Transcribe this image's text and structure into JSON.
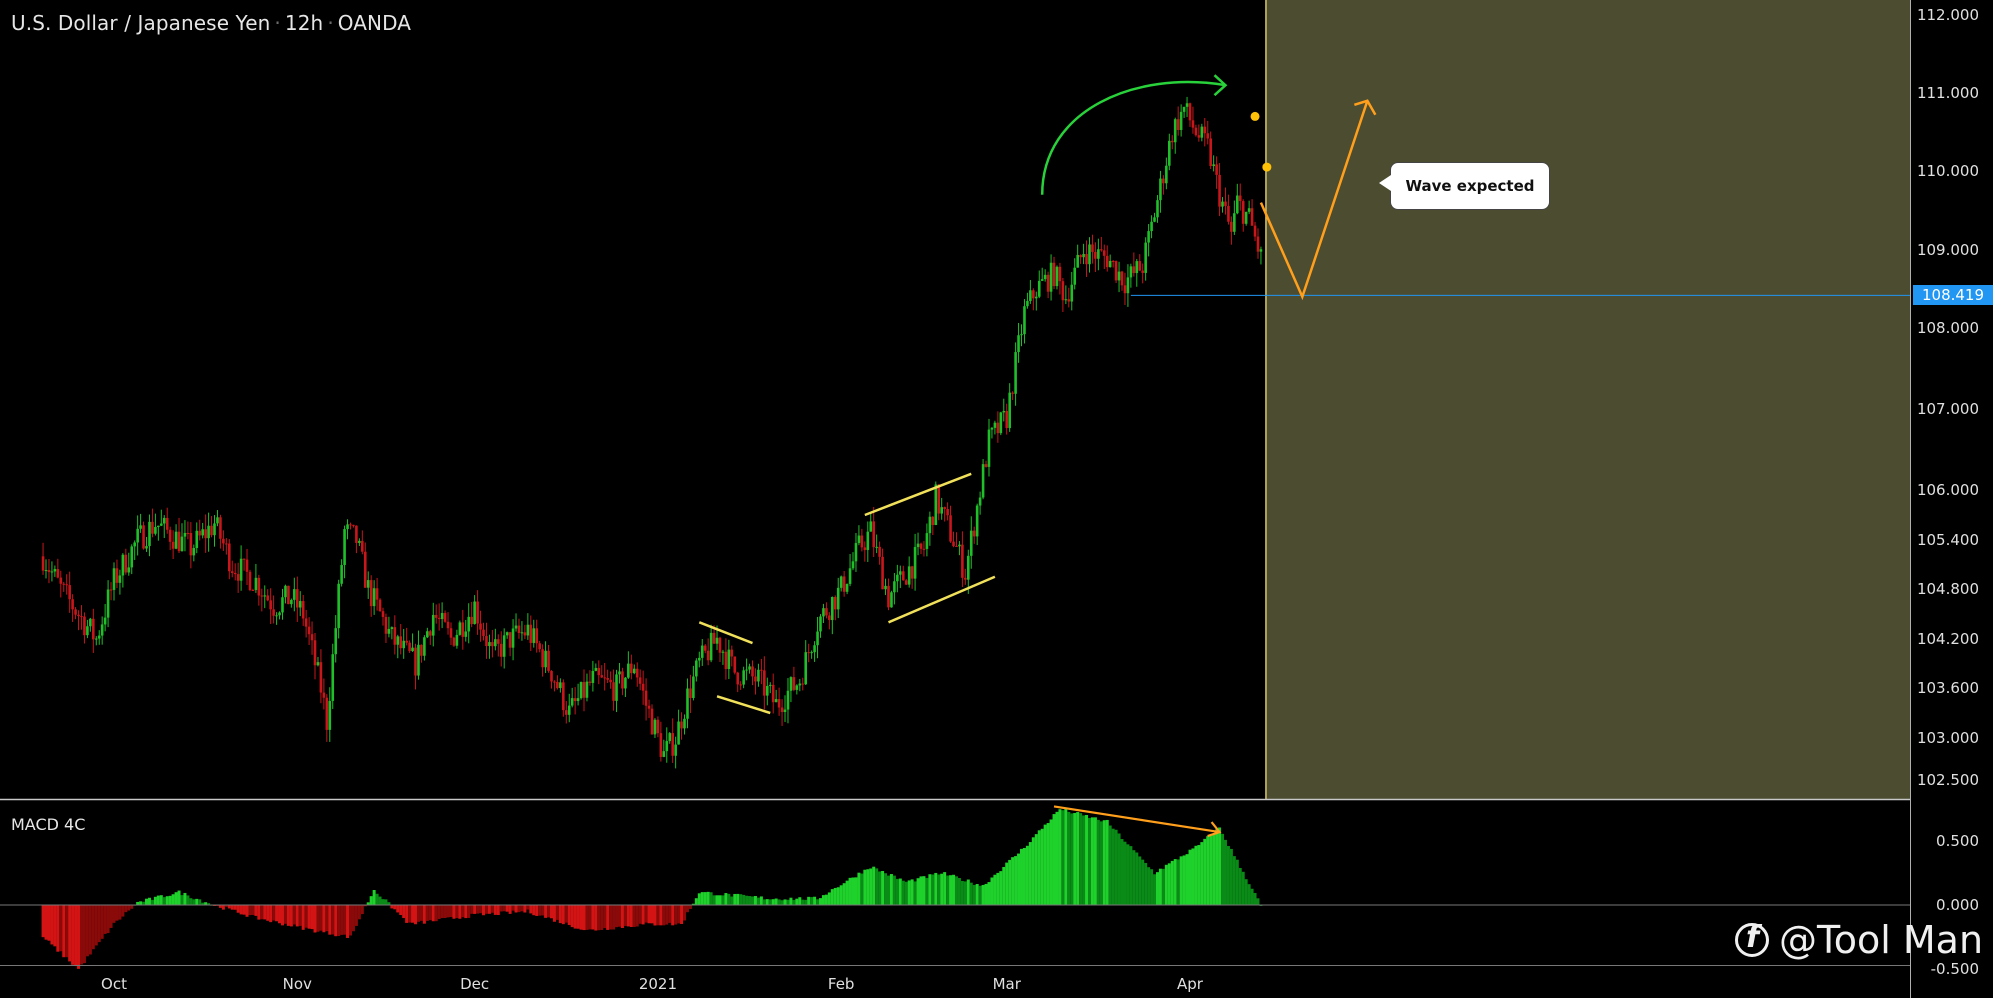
{
  "header": {
    "symbol": "U.S. Dollar / Japanese Yen",
    "interval": "12h",
    "exchange": "OANDA",
    "separator": "·"
  },
  "price_panel": {
    "current_price_label": "108.419",
    "annotation": "Wave expected",
    "colors": {
      "up": "#1fbf2a",
      "down": "#c8161b",
      "forecast_zone": "#4b4c30",
      "forecast_border": "#d8c76a",
      "price_line": "#2196f3",
      "projection": "#ff9f1c",
      "pattern": "#f0e05a",
      "arrow": "#29d13a"
    }
  },
  "indicator_panel": {
    "label": "MACD 4C"
  },
  "watermark": "@Tool Man",
  "chart_data": [
    {
      "type": "candlestick",
      "title": "U.S. Dollar / Japanese Yen · 12h · OANDA",
      "x_ticks": [
        "Oct",
        "Nov",
        "Dec",
        "2021",
        "Feb",
        "Mar",
        "Apr"
      ],
      "y_ticks": [
        "112.000",
        "111.000",
        "110.000",
        "109.000",
        "108.000",
        "107.000",
        "106.000",
        "105.400",
        "104.800",
        "104.200",
        "103.600",
        "103.000",
        "102.500"
      ],
      "last_price": 108.419,
      "close_path": [
        [
          "2020-09-19",
          105.2
        ],
        [
          "2020-09-22",
          104.8
        ],
        [
          "2020-09-25",
          104.5
        ],
        [
          "2020-09-28",
          104.2
        ],
        [
          "2020-10-01",
          104.9
        ],
        [
          "2020-10-05",
          105.4
        ],
        [
          "2020-10-08",
          105.6
        ],
        [
          "2020-10-10",
          105.5
        ],
        [
          "2020-10-14",
          105.3
        ],
        [
          "2020-10-18",
          105.6
        ],
        [
          "2020-10-21",
          105.1
        ],
        [
          "2020-10-25",
          104.9
        ],
        [
          "2020-10-28",
          104.6
        ],
        [
          "2020-10-31",
          104.7
        ],
        [
          "2020-11-02",
          104.5
        ],
        [
          "2020-11-05",
          103.6
        ],
        [
          "2020-11-06",
          103.2
        ],
        [
          "2020-11-09",
          105.5
        ],
        [
          "2020-11-11",
          105.4
        ],
        [
          "2020-11-13",
          104.8
        ],
        [
          "2020-11-17",
          104.2
        ],
        [
          "2020-11-21",
          103.9
        ],
        [
          "2020-11-24",
          104.5
        ],
        [
          "2020-11-27",
          104.2
        ],
        [
          "2020-12-01",
          104.6
        ],
        [
          "2020-12-04",
          104.0
        ],
        [
          "2020-12-07",
          104.2
        ],
        [
          "2020-12-10",
          104.3
        ],
        [
          "2020-12-14",
          103.8
        ],
        [
          "2020-12-17",
          103.3
        ],
        [
          "2020-12-21",
          103.7
        ],
        [
          "2020-12-25",
          103.6
        ],
        [
          "2020-12-28",
          103.9
        ],
        [
          "2020-12-30",
          103.4
        ],
        [
          "2021-01-02",
          102.8
        ],
        [
          "2021-01-04",
          103.0
        ],
        [
          "2021-01-06",
          103.5
        ],
        [
          "2021-01-08",
          103.9
        ],
        [
          "2021-01-11",
          104.2
        ],
        [
          "2021-01-14",
          103.8
        ],
        [
          "2021-01-18",
          103.7
        ],
        [
          "2021-01-21",
          103.4
        ],
        [
          "2021-01-25",
          103.7
        ],
        [
          "2021-01-28",
          104.4
        ],
        [
          "2021-02-01",
          104.8
        ],
        [
          "2021-02-04",
          105.3
        ],
        [
          "2021-02-06",
          105.5
        ],
        [
          "2021-02-09",
          104.7
        ],
        [
          "2021-02-12",
          105.0
        ],
        [
          "2021-02-15",
          105.3
        ],
        [
          "2021-02-17",
          105.9
        ],
        [
          "2021-02-20",
          105.4
        ],
        [
          "2021-02-22",
          105.0
        ],
        [
          "2021-02-24",
          105.8
        ],
        [
          "2021-02-26",
          106.6
        ],
        [
          "2021-03-01",
          106.9
        ],
        [
          "2021-03-04",
          108.2
        ],
        [
          "2021-03-06",
          108.5
        ],
        [
          "2021-03-09",
          108.7
        ],
        [
          "2021-03-11",
          108.4
        ],
        [
          "2021-03-14",
          109.0
        ],
        [
          "2021-03-18",
          108.9
        ],
        [
          "2021-03-21",
          108.6
        ],
        [
          "2021-03-24",
          108.8
        ],
        [
          "2021-03-27",
          109.8
        ],
        [
          "2021-03-29",
          110.5
        ],
        [
          "2021-03-31",
          110.8
        ],
        [
          "2021-04-02",
          110.5
        ],
        [
          "2021-04-04",
          110.3
        ],
        [
          "2021-04-06",
          109.7
        ],
        [
          "2021-04-08",
          109.2
        ],
        [
          "2021-04-09",
          109.6
        ],
        [
          "2021-04-11",
          109.4
        ],
        [
          "2021-04-13",
          108.9
        ]
      ],
      "projection": [
        [
          "2021-04-13",
          109.6
        ],
        [
          "2021-04-20",
          108.4
        ],
        [
          "2021-05-01",
          110.9
        ]
      ]
    },
    {
      "type": "bar",
      "title": "MACD 4C",
      "y_ticks": [
        "0.500",
        "0.000",
        "-0.500"
      ],
      "histogram_path": [
        [
          "2020-09-19",
          -0.25
        ],
        [
          "2020-09-25",
          -0.5
        ],
        [
          "2020-10-01",
          -0.15
        ],
        [
          "2020-10-05",
          0.02
        ],
        [
          "2020-10-12",
          0.1
        ],
        [
          "2020-10-18",
          0.0
        ],
        [
          "2020-10-25",
          -0.1
        ],
        [
          "2020-11-04",
          -0.2
        ],
        [
          "2020-11-10",
          -0.25
        ],
        [
          "2020-11-14",
          0.12
        ],
        [
          "2020-11-20",
          -0.15
        ],
        [
          "2020-12-01",
          -0.08
        ],
        [
          "2020-12-10",
          -0.05
        ],
        [
          "2020-12-20",
          -0.2
        ],
        [
          "2020-12-30",
          -0.15
        ],
        [
          "2021-01-05",
          -0.15
        ],
        [
          "2021-01-08",
          0.1
        ],
        [
          "2021-01-20",
          0.05
        ],
        [
          "2021-01-28",
          0.05
        ],
        [
          "2021-02-06",
          0.3
        ],
        [
          "2021-02-12",
          0.18
        ],
        [
          "2021-02-18",
          0.25
        ],
        [
          "2021-02-25",
          0.15
        ],
        [
          "2021-03-04",
          0.45
        ],
        [
          "2021-03-10",
          0.75
        ],
        [
          "2021-03-18",
          0.65
        ],
        [
          "2021-03-26",
          0.25
        ],
        [
          "2021-04-02",
          0.45
        ],
        [
          "2021-04-06",
          0.6
        ],
        [
          "2021-04-13",
          0.0
        ]
      ],
      "divergence_line": [
        [
          "2021-03-09",
          0.77
        ],
        [
          "2021-04-06",
          0.57
        ]
      ]
    }
  ]
}
